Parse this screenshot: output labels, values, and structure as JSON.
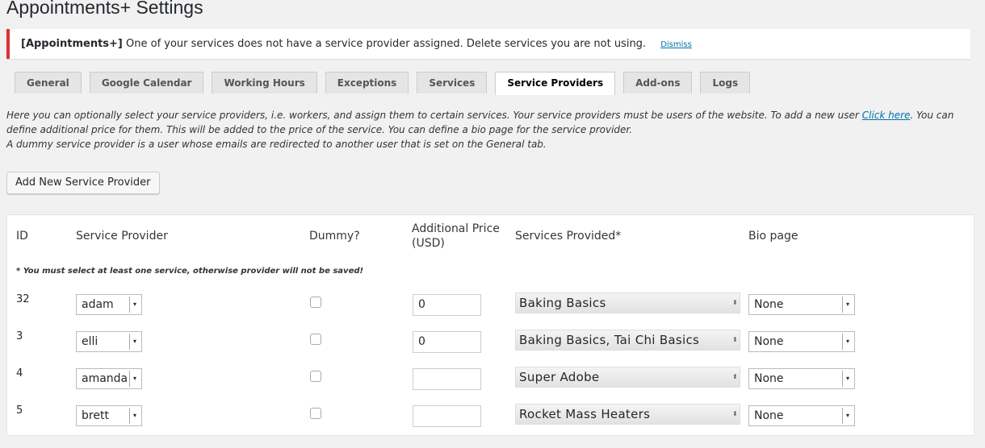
{
  "header": {
    "title": "Appointments+ Settings"
  },
  "notice": {
    "prefix": "[Appointments+]",
    "message": "One of your services does not have a service provider assigned. Delete services you are not using.",
    "dismiss": "Dismiss"
  },
  "tabs": [
    {
      "label": "General",
      "active": false
    },
    {
      "label": "Google Calendar",
      "active": false
    },
    {
      "label": "Working Hours",
      "active": false
    },
    {
      "label": "Exceptions",
      "active": false
    },
    {
      "label": "Services",
      "active": false
    },
    {
      "label": "Service Providers",
      "active": true
    },
    {
      "label": "Add-ons",
      "active": false
    },
    {
      "label": "Logs",
      "active": false
    }
  ],
  "intro": {
    "before_link": "Here you can optionally select your service providers, i.e. workers, and assign them to certain services. Your service providers must be users of the website. To add a new user ",
    "link": "Click here",
    "after_link": ". You can define additional price for them. This will be added to the price of the service. You can define a bio page for the service provider.",
    "dummy_note": "A dummy service provider is a user whose emails are redirected to another user that is set on the General tab."
  },
  "add_button": "Add New Service Provider",
  "table": {
    "columns": [
      "ID",
      "Service Provider",
      "Dummy?",
      "Additional Price (USD)",
      "Services Provided*",
      "Bio page"
    ],
    "note": "* You must select at least one service, otherwise provider will not be saved!",
    "rows": [
      {
        "id": 32,
        "provider": "adam",
        "dummy": false,
        "price": 0,
        "services": "Baking Basics",
        "bio": "None"
      },
      {
        "id": 3,
        "provider": "elli",
        "dummy": false,
        "price": 0,
        "services": "Baking Basics, Tai Chi Basics",
        "bio": "None"
      },
      {
        "id": 4,
        "provider": "amanda",
        "dummy": false,
        "price": null,
        "services": "Super Adobe",
        "bio": "None"
      },
      {
        "id": 5,
        "provider": "brett",
        "dummy": false,
        "price": null,
        "services": "Rocket Mass Heaters",
        "bio": "None"
      }
    ]
  }
}
